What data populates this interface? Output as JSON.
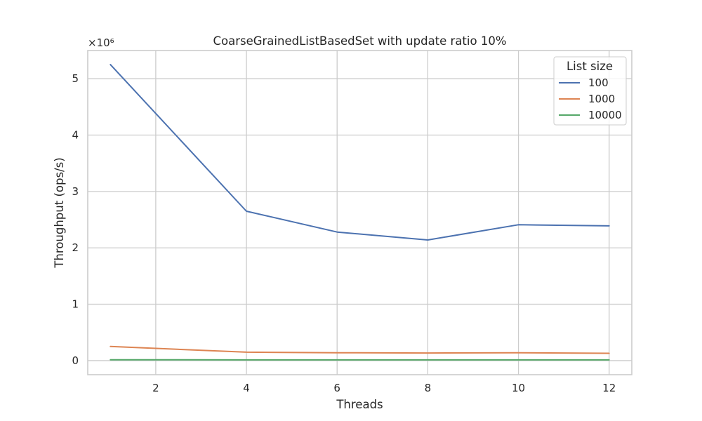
{
  "chart_data": {
    "type": "line",
    "title": "CoarseGrainedListBasedSet with update ratio 10%",
    "xlabel": "Threads",
    "ylabel": "Throughput (ops/s)",
    "y_scale_factor": "×10⁶",
    "x": [
      1,
      4,
      6,
      8,
      10,
      12
    ],
    "xlim": [
      0.5,
      12.5
    ],
    "ylim": [
      -0.25,
      5.5
    ],
    "xticks": [
      2,
      4,
      6,
      8,
      10,
      12
    ],
    "yticks": [
      0,
      1,
      2,
      3,
      4,
      5
    ],
    "grid": true,
    "legend": {
      "title": "List size",
      "placement": "top-right"
    },
    "series": [
      {
        "name": "100",
        "color": "#4c72b0",
        "values": [
          5.25,
          2.65,
          2.28,
          2.14,
          2.41,
          2.39
        ]
      },
      {
        "name": "1000",
        "color": "#dd8452",
        "values": [
          0.25,
          0.15,
          0.14,
          0.135,
          0.14,
          0.13
        ]
      },
      {
        "name": "10000",
        "color": "#55a868",
        "values": [
          0.015,
          0.012,
          0.012,
          0.012,
          0.012,
          0.012
        ]
      }
    ]
  }
}
